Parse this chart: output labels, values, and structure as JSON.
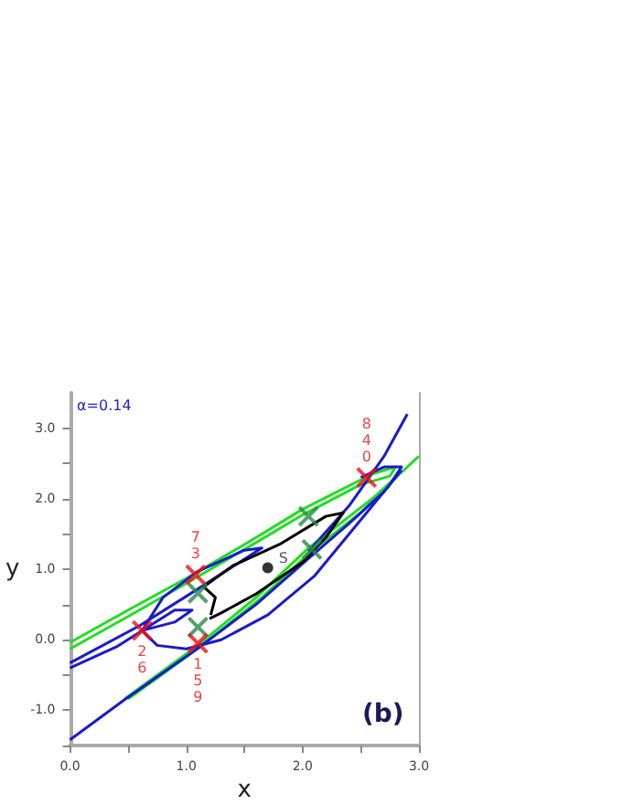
{
  "chart_data": {
    "type": "line",
    "xlabel": "x",
    "ylabel": "y",
    "xlim": [
      0,
      3
    ],
    "ylim": [
      -1.5,
      3.5
    ],
    "xticks": [
      {
        "value": 0,
        "label": "0.0"
      },
      {
        "value": 0.5,
        "label": null
      },
      {
        "value": 1,
        "label": "1.0"
      },
      {
        "value": 1.5,
        "label": null
      },
      {
        "value": 2,
        "label": "2.0"
      },
      {
        "value": 2.5,
        "label": null
      },
      {
        "value": 3,
        "label": "3.0"
      }
    ],
    "yticks": [
      {
        "value": -1.5,
        "label": null
      },
      {
        "value": -1,
        "label": "-1.0"
      },
      {
        "value": -0.5,
        "label": null
      },
      {
        "value": 0,
        "label": "0.0"
      },
      {
        "value": 0.5,
        "label": null
      },
      {
        "value": 1,
        "label": "1.0"
      },
      {
        "value": 1.5,
        "label": null
      },
      {
        "value": 2,
        "label": "2.0"
      },
      {
        "value": 2.5,
        "label": null
      },
      {
        "value": 3,
        "label": "3.0"
      }
    ],
    "grid": false,
    "line_style": "solid",
    "series": [
      {
        "color": "#22dd22",
        "x": [
          0,
          0.5,
          1,
          1.5,
          2,
          2.6,
          2.8,
          2.75,
          2.5,
          2,
          1.5,
          1,
          0.5,
          0
        ],
        "values": [
          -0.04,
          0.42,
          0.87,
          1.35,
          1.85,
          2.35,
          2.45,
          2.32,
          2.2,
          1.77,
          1.28,
          0.8,
          0.33,
          -0.13
        ]
      },
      {
        "color": "#22dd22",
        "x": [
          0.47,
          1.09,
          1.6,
          2.05,
          2.6,
          3
        ],
        "values": [
          -0.84,
          -0.09,
          0.6,
          1.3,
          2,
          2.6
        ]
      },
      {
        "color": "#22dd22",
        "x": [
          0.5,
          1.12,
          1.65,
          2.08,
          2.5,
          2.8
        ],
        "values": [
          -0.84,
          -0.1,
          0.6,
          1.26,
          1.8,
          2.3
        ]
      },
      {
        "color": "#1a1ad0",
        "x": [
          0,
          0.6,
          1.1,
          1.6,
          1.65,
          1.5,
          1.1,
          0.8,
          0.62,
          0.75,
          1,
          1.3,
          1.7,
          2.1,
          2.5,
          2.75,
          2.85,
          2.7,
          2.5
        ],
        "values": [
          -0.33,
          0.2,
          0.72,
          1.25,
          1.3,
          1.27,
          0.97,
          0.6,
          0.13,
          -0.08,
          -0.13,
          0,
          0.35,
          0.9,
          1.7,
          2.2,
          2.45,
          2.45,
          2.3
        ]
      },
      {
        "color": "#1a1ad0",
        "x": [
          0,
          0.47,
          1.1,
          1.6,
          2.05,
          2.4,
          2.7,
          2.85
        ],
        "values": [
          -1.42,
          -0.85,
          -0.12,
          0.5,
          1.15,
          1.65,
          2.1,
          2.4
        ]
      },
      {
        "color": "#1a1ad0",
        "x": [
          0,
          0.4,
          0.62,
          0.9,
          1.05,
          0.9,
          0.62
        ],
        "values": [
          -0.4,
          -0.1,
          0.13,
          0.42,
          0.42,
          0.25,
          0.13
        ]
      },
      {
        "color": "#1a1ad0",
        "x": [
          2.05,
          2.4,
          2.7,
          2.9
        ],
        "values": [
          1.25,
          1.9,
          2.6,
          3.2
        ]
      },
      {
        "color": "#000000",
        "x": [
          1.2,
          1.3,
          1.6,
          2,
          2.2,
          2.35,
          2.2,
          1.8,
          1.4,
          1.15,
          1.25,
          1.21
        ],
        "values": [
          0.3,
          0.38,
          0.65,
          1.1,
          1.45,
          1.8,
          1.75,
          1.35,
          1.05,
          0.75,
          0.6,
          0.35
        ]
      },
      {
        "type": "scatter",
        "marker": "cross",
        "color": "#2a8a4a",
        "x": [
          1.1,
          1.1,
          2.08,
          2.05
        ],
        "values": [
          0.66,
          0.18,
          1.28,
          1.75
        ]
      },
      {
        "type": "scatter",
        "marker": "cross",
        "color": "#ee1111",
        "x": [
          0.62,
          1.08,
          1.1,
          2.55
        ],
        "values": [
          0.13,
          0.92,
          -0.05,
          2.3
        ]
      },
      {
        "type": "scatter",
        "marker": "circle",
        "color": "#000000",
        "x": [
          1.7
        ],
        "values": [
          1.02
        ]
      }
    ],
    "annotations": [
      "α=0.14",
      "(b)",
      {
        "text": "73",
        "x": 1.08,
        "y": 0.92
      },
      {
        "text": "26",
        "x": 0.62,
        "y": 0.13
      },
      {
        "text": "159",
        "x": 1.1,
        "y": -0.05
      },
      {
        "text": "840",
        "x": 2.55,
        "y": 2.3
      },
      {
        "text": "S",
        "x": 1.7,
        "y": 1.02
      }
    ]
  }
}
